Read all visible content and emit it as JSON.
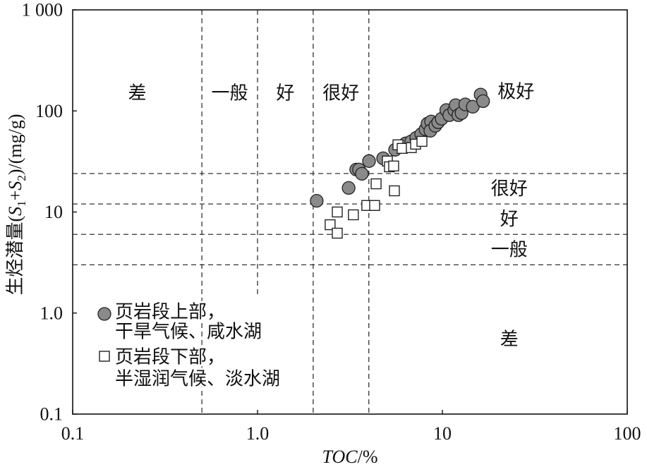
{
  "chart_data": {
    "type": "scatter",
    "x_scale": "log",
    "y_scale": "log",
    "xlabel": "TOC/%",
    "ylabel": "生烃潜量(S1+S2)/(mg/g)",
    "xlim": [
      0.1,
      100
    ],
    "ylim": [
      0.1,
      1000
    ],
    "x_ticks": [
      {
        "value": 0.1,
        "label": "0.1"
      },
      {
        "value": 1,
        "label": "1.0"
      },
      {
        "value": 10,
        "label": "10"
      },
      {
        "value": 100,
        "label": "100"
      }
    ],
    "y_ticks": [
      {
        "value": 0.1,
        "label": "0.1"
      },
      {
        "value": 1,
        "label": "1.0"
      },
      {
        "value": 10,
        "label": "10"
      },
      {
        "value": 100,
        "label": "100"
      },
      {
        "value": 1000,
        "label": "1 000"
      }
    ],
    "grid": false,
    "legend_position": "bottom-left",
    "toc_thresholds": [
      0.5,
      1.0,
      2.0,
      4.0
    ],
    "s1s2_thresholds": [
      3,
      6,
      12,
      24
    ],
    "toc_class_labels": [
      "差",
      "一般",
      "好",
      "很好"
    ],
    "s1s2_class_labels": [
      "差",
      "一般",
      "好",
      "很好"
    ],
    "excellent_label": "极好",
    "line_color": "#333333",
    "series": [
      {
        "name_lines": [
          "页岩段上部，",
          "干旱气候、咸水湖"
        ],
        "marker": "circle",
        "fill": "#8a8a8a",
        "stroke": "#222222",
        "points": [
          [
            2.09,
            12.9
          ],
          [
            3.11,
            17.3
          ],
          [
            3.42,
            26.3
          ],
          [
            3.54,
            26.3
          ],
          [
            3.67,
            23.9
          ],
          [
            4.01,
            31.9
          ],
          [
            4.78,
            34.0
          ],
          [
            5.55,
            41.3
          ],
          [
            6.33,
            47.7
          ],
          [
            6.79,
            50.0
          ],
          [
            7.22,
            54.2
          ],
          [
            7.68,
            58.8
          ],
          [
            8.1,
            65.8
          ],
          [
            8.31,
            74.8
          ],
          [
            8.69,
            78.6
          ],
          [
            8.61,
            63.7
          ],
          [
            9.16,
            71.3
          ],
          [
            9.49,
            77.3
          ],
          [
            9.91,
            83.8
          ],
          [
            10.5,
            102
          ],
          [
            10.9,
            90.8
          ],
          [
            11.6,
            102
          ],
          [
            11.8,
            114
          ],
          [
            12.2,
            90.8
          ],
          [
            12.7,
            95.3
          ],
          [
            13.3,
            116
          ],
          [
            14.6,
            110
          ],
          [
            16.1,
            145
          ],
          [
            16.6,
            125
          ]
        ]
      },
      {
        "name_lines": [
          "页岩段下部，",
          "半湿润气候、淡水湖"
        ],
        "marker": "square",
        "fill": "#ffffff",
        "stroke": "#222222",
        "points": [
          [
            2.47,
            7.48
          ],
          [
            2.7,
            6.17
          ],
          [
            2.7,
            10.0
          ],
          [
            3.3,
            9.38
          ],
          [
            3.9,
            11.6
          ],
          [
            4.3,
            11.6
          ],
          [
            4.38,
            19.0
          ],
          [
            5.04,
            31.9
          ],
          [
            5.17,
            28.0
          ],
          [
            5.45,
            28.5
          ],
          [
            5.5,
            16.2
          ],
          [
            5.75,
            46.2
          ],
          [
            6.06,
            42.6
          ],
          [
            6.79,
            43.3
          ],
          [
            7.16,
            46.9
          ],
          [
            7.75,
            50.0
          ]
        ]
      }
    ]
  }
}
